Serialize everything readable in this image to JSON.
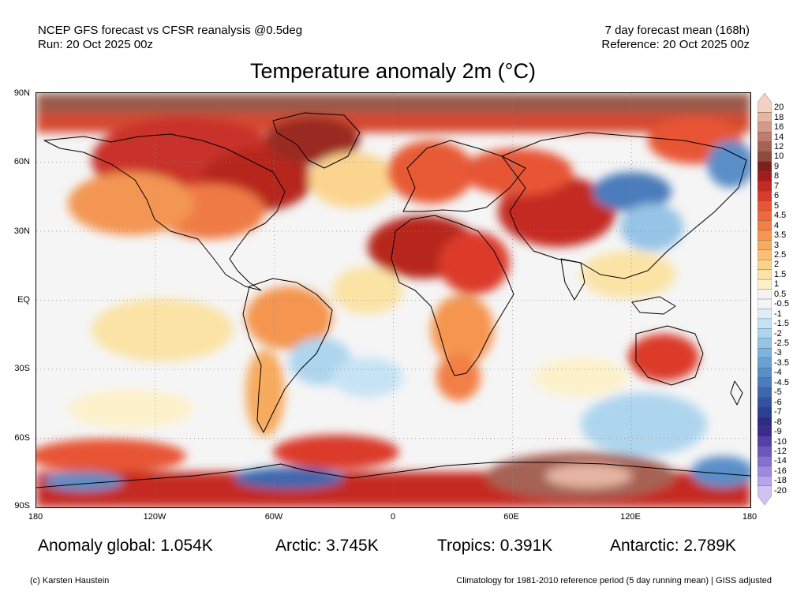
{
  "header": {
    "left_line1": "NCEP GFS forecast vs CFSR reanalysis @0.5deg",
    "left_line2": "Run: 20 Oct 2025 00z",
    "right_line1": "7 day forecast mean (168h)",
    "right_line2": "Reference: 20 Oct 2025 00z"
  },
  "title": "Temperature anomaly 2m (°C)",
  "axes": {
    "lat_labels": [
      "90N",
      "60N",
      "30N",
      "EQ",
      "30S",
      "60S",
      "90S"
    ],
    "lon_labels": [
      "180",
      "120W",
      "60W",
      "0",
      "60E",
      "120E",
      "180"
    ]
  },
  "colorbar": {
    "labels": [
      "20",
      "18",
      "16",
      "14",
      "12",
      "10",
      "9",
      "8",
      "7",
      "6",
      "5",
      "4.5",
      "4",
      "3.5",
      "3",
      "2.5",
      "2",
      "1.5",
      "1",
      "0.5",
      "-0.5",
      "-1",
      "-1.5",
      "-2",
      "-2.5",
      "-3",
      "-3.5",
      "-4",
      "-4.5",
      "-5",
      "-6",
      "-7",
      "-8",
      "-9",
      "-10",
      "-12",
      "-14",
      "-16",
      "-18",
      "-20"
    ],
    "colors": [
      "#f3d2c4",
      "#e6b5a2",
      "#d49a87",
      "#be7d6d",
      "#a66254",
      "#8e4a3e",
      "#7d1f1f",
      "#a51c1c",
      "#c52a22",
      "#dc3a2a",
      "#e85434",
      "#ee6a3c",
      "#f27f45",
      "#f59550",
      "#f7ab5f",
      "#f9c074",
      "#fad38a",
      "#fbe3a6",
      "#fdf1cc",
      "#f4f4f4",
      "#f4f4f4",
      "#dbeefa",
      "#c6e3f5",
      "#aed5ee",
      "#96c4e6",
      "#7fb2dc",
      "#6aa0d2",
      "#5a8ec7",
      "#4b7cbb",
      "#3e67ad",
      "#33539f",
      "#2c4093",
      "#2b2d85",
      "#3b2a92",
      "#5340a8",
      "#6c57bf",
      "#8670d1",
      "#9f89de",
      "#b8a4e8",
      "#d0c3f0"
    ]
  },
  "stats": {
    "global": "Anomaly global: 1.054K",
    "arctic": "Arctic: 3.745K",
    "tropics": "Tropics: 0.391K",
    "antarctic": "Antarctic: 2.789K"
  },
  "footer": {
    "left": "(c) Karsten Haustein",
    "right": "Climatology for 1981-2010 reference period (5 day running mean) | GISS adjusted"
  }
}
